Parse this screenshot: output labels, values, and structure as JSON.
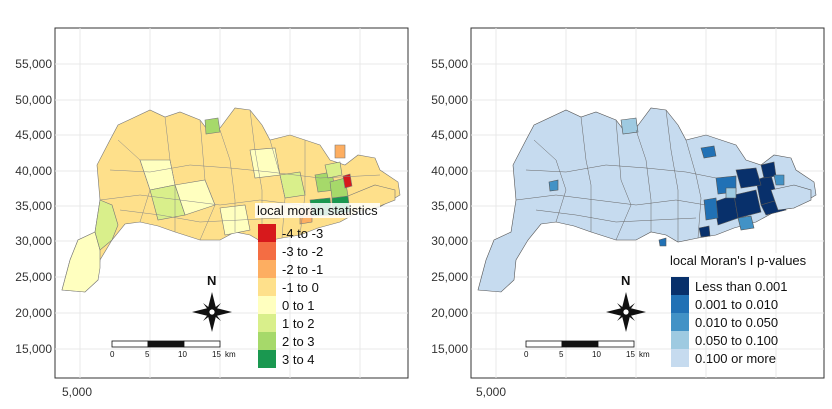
{
  "panels": [
    {
      "legend_title": "local moran statistics",
      "legend": [
        {
          "label": "-4 to -3",
          "color": "#d7191c"
        },
        {
          "label": "-3 to -2",
          "color": "#f46d43"
        },
        {
          "label": "-2 to -1",
          "color": "#fdae61"
        },
        {
          "label": "-1 to 0",
          "color": "#fee08b"
        },
        {
          "label": "0 to 1",
          "color": "#ffffbf"
        },
        {
          "label": "1 to 2",
          "color": "#d9ef8b"
        },
        {
          "label": "2 to 3",
          "color": "#a6d96a"
        },
        {
          "label": "3 to 4",
          "color": "#1a9850"
        }
      ]
    },
    {
      "legend_title": "local Moran's I p-values",
      "legend": [
        {
          "label": "Less than 0.001",
          "color": "#08306b"
        },
        {
          "label": "0.001 to 0.010",
          "color": "#2171b5"
        },
        {
          "label": "0.010 to 0.050",
          "color": "#4292c6"
        },
        {
          "label": "0.050 to 0.100",
          "color": "#9ecae1"
        },
        {
          "label": "0.100 or more",
          "color": "#c6dbef"
        }
      ]
    }
  ],
  "y_ticks": [
    "55,000",
    "50,000",
    "45,000",
    "40,000",
    "35,000",
    "30,000",
    "25,000",
    "20,000",
    "15,000"
  ],
  "x_ticks": [
    "5,000"
  ],
  "north_label": "N",
  "scalebar": {
    "labels": [
      "0",
      "5",
      "10",
      "15"
    ],
    "unit": "km"
  }
}
